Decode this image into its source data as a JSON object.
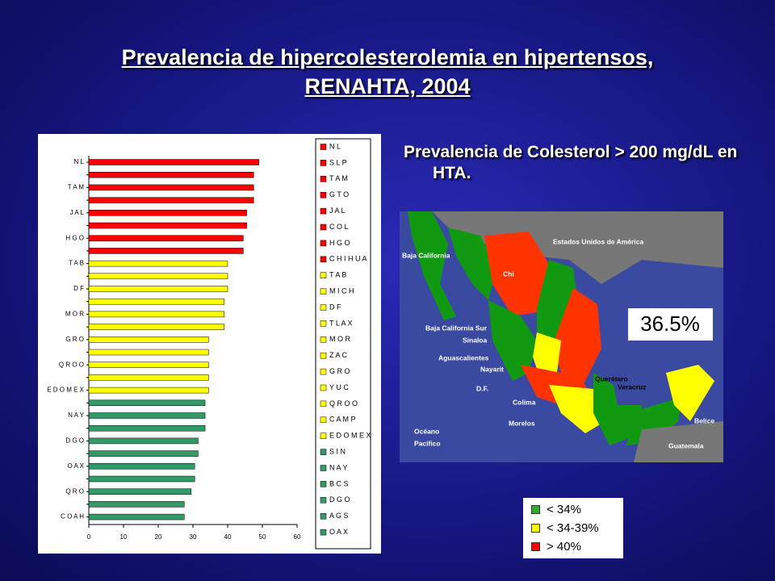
{
  "title_line1": "Prevalencia de hipercolesterolemia en hipertensos,",
  "title_line2": "RENAHTA, 2004",
  "subtitle": "Prevalencia de Colesterol > 200 mg/dL en HTA.",
  "map": {
    "labels": [
      "Estados Unidos de América",
      "Baja California",
      "Baja California Sur",
      "Sinaloa",
      "Aguascalientes",
      "Nayarit",
      "D.F.",
      "Colima",
      "Morelos",
      "Océano",
      "Pacífico",
      "Chi",
      "Querétaro",
      "Veracruz",
      "Belice",
      "Guatemala"
    ],
    "highlight": "36.5%"
  },
  "map_legend": [
    {
      "label": "< 34%",
      "color": "#33aa33"
    },
    {
      "label": "< 34-39%",
      "color": "#ffff00"
    },
    {
      "label": "> 40%",
      "color": "#ff0000"
    }
  ],
  "chart_data": {
    "type": "hbar",
    "categories": [
      "N L",
      null,
      "T A M",
      null,
      "J A L",
      null,
      "H G O",
      null,
      "T A B",
      null,
      "D F",
      null,
      "M O R",
      null,
      "G R O",
      null,
      "Q R O O",
      null,
      "E D O M E X",
      null,
      "N A Y",
      null,
      "D G O",
      null,
      "O A X",
      null,
      "Q R O",
      null,
      "C O A H"
    ],
    "values": [
      49,
      47.5,
      47.5,
      47.5,
      45.5,
      45.5,
      44.5,
      44.5,
      40,
      40,
      40,
      39,
      39,
      39,
      34.5,
      34.5,
      34.5,
      34.5,
      34.5,
      33.5,
      33.5,
      33.5,
      31.5,
      31.5,
      30.5,
      30.5,
      29.5,
      27.5,
      27.5
    ],
    "colors": [
      "#ff0000",
      "#ff0000",
      "#ff0000",
      "#ff0000",
      "#ff0000",
      "#ff0000",
      "#ff0000",
      "#ff0000",
      "#ffff00",
      "#ffff00",
      "#ffff00",
      "#ffff00",
      "#ffff00",
      "#ffff00",
      "#ffff00",
      "#ffff00",
      "#ffff00",
      "#ffff00",
      "#ffff00",
      "#339966",
      "#339966",
      "#339966",
      "#339966",
      "#339966",
      "#339966",
      "#339966",
      "#339966",
      "#339966",
      "#339966"
    ],
    "xlim": [
      0,
      60
    ],
    "xticks": [
      0,
      10,
      20,
      30,
      40,
      50,
      60
    ],
    "legend": [
      {
        "name": "N L",
        "color": "#ff0000"
      },
      {
        "name": "S L P",
        "color": "#ff0000"
      },
      {
        "name": "T A M",
        "color": "#ff0000"
      },
      {
        "name": "G T O",
        "color": "#ff0000"
      },
      {
        "name": "J A L",
        "color": "#ff0000"
      },
      {
        "name": "C O L",
        "color": "#ff0000"
      },
      {
        "name": "H G O",
        "color": "#ff0000"
      },
      {
        "name": "C H I H U A",
        "color": "#ff0000"
      },
      {
        "name": "T A B",
        "color": "#ffff00"
      },
      {
        "name": "M I C H",
        "color": "#ffff00"
      },
      {
        "name": "D F",
        "color": "#ffff00"
      },
      {
        "name": "T L A X",
        "color": "#ffff00"
      },
      {
        "name": "M O R",
        "color": "#ffff00"
      },
      {
        "name": "Z A C",
        "color": "#ffff00"
      },
      {
        "name": "G R O",
        "color": "#ffff00"
      },
      {
        "name": "Y U C",
        "color": "#ffff00"
      },
      {
        "name": "Q R O O",
        "color": "#ffff00"
      },
      {
        "name": "C A M P",
        "color": "#ffff00"
      },
      {
        "name": "E D O M E X",
        "color": "#ffff00"
      },
      {
        "name": "S I N",
        "color": "#339966"
      },
      {
        "name": "N A Y",
        "color": "#339966"
      },
      {
        "name": "B C S",
        "color": "#339966"
      },
      {
        "name": "D G O",
        "color": "#339966"
      },
      {
        "name": "A G S",
        "color": "#339966"
      },
      {
        "name": "O A X",
        "color": "#339966"
      }
    ]
  }
}
